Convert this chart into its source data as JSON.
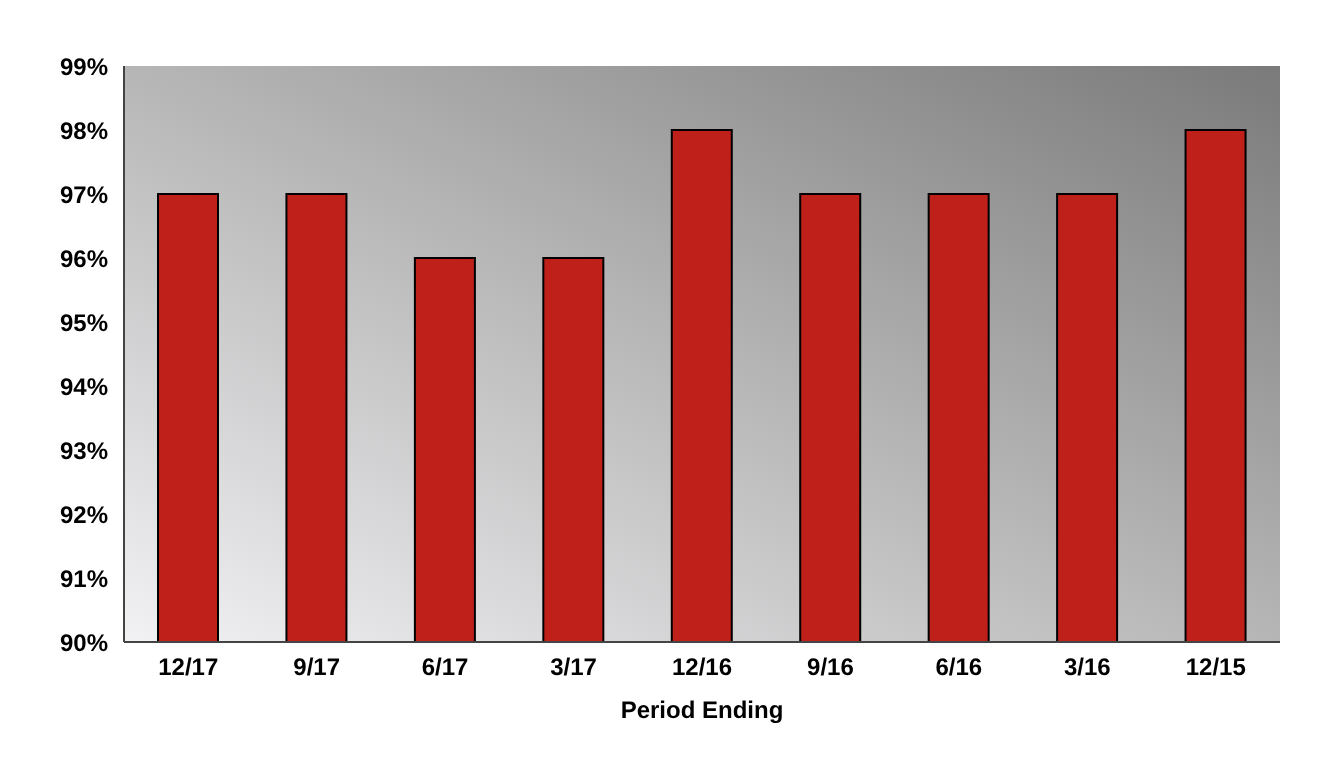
{
  "chart_data": {
    "type": "bar",
    "xlabel": "Period Ending",
    "categories": [
      "12/17",
      "9/17",
      "6/17",
      "3/17",
      "12/16",
      "9/16",
      "6/16",
      "3/16",
      "12/15"
    ],
    "values": [
      97,
      97,
      96,
      96,
      98,
      97,
      97,
      97,
      98
    ],
    "color": "#c0201a",
    "ylim": [
      90,
      99
    ],
    "yticks": [
      {
        "value": 90,
        "label": "90%"
      },
      {
        "value": 91,
        "label": "91%"
      },
      {
        "value": 92,
        "label": "92%"
      },
      {
        "value": 93,
        "label": "93%"
      },
      {
        "value": 94,
        "label": "94%"
      },
      {
        "value": 95,
        "label": "95%"
      },
      {
        "value": 96,
        "label": "96%"
      },
      {
        "value": 97,
        "label": "97%"
      },
      {
        "value": 98,
        "label": "98%"
      },
      {
        "value": 99,
        "label": "99%"
      }
    ],
    "grid": false,
    "legend": false
  }
}
